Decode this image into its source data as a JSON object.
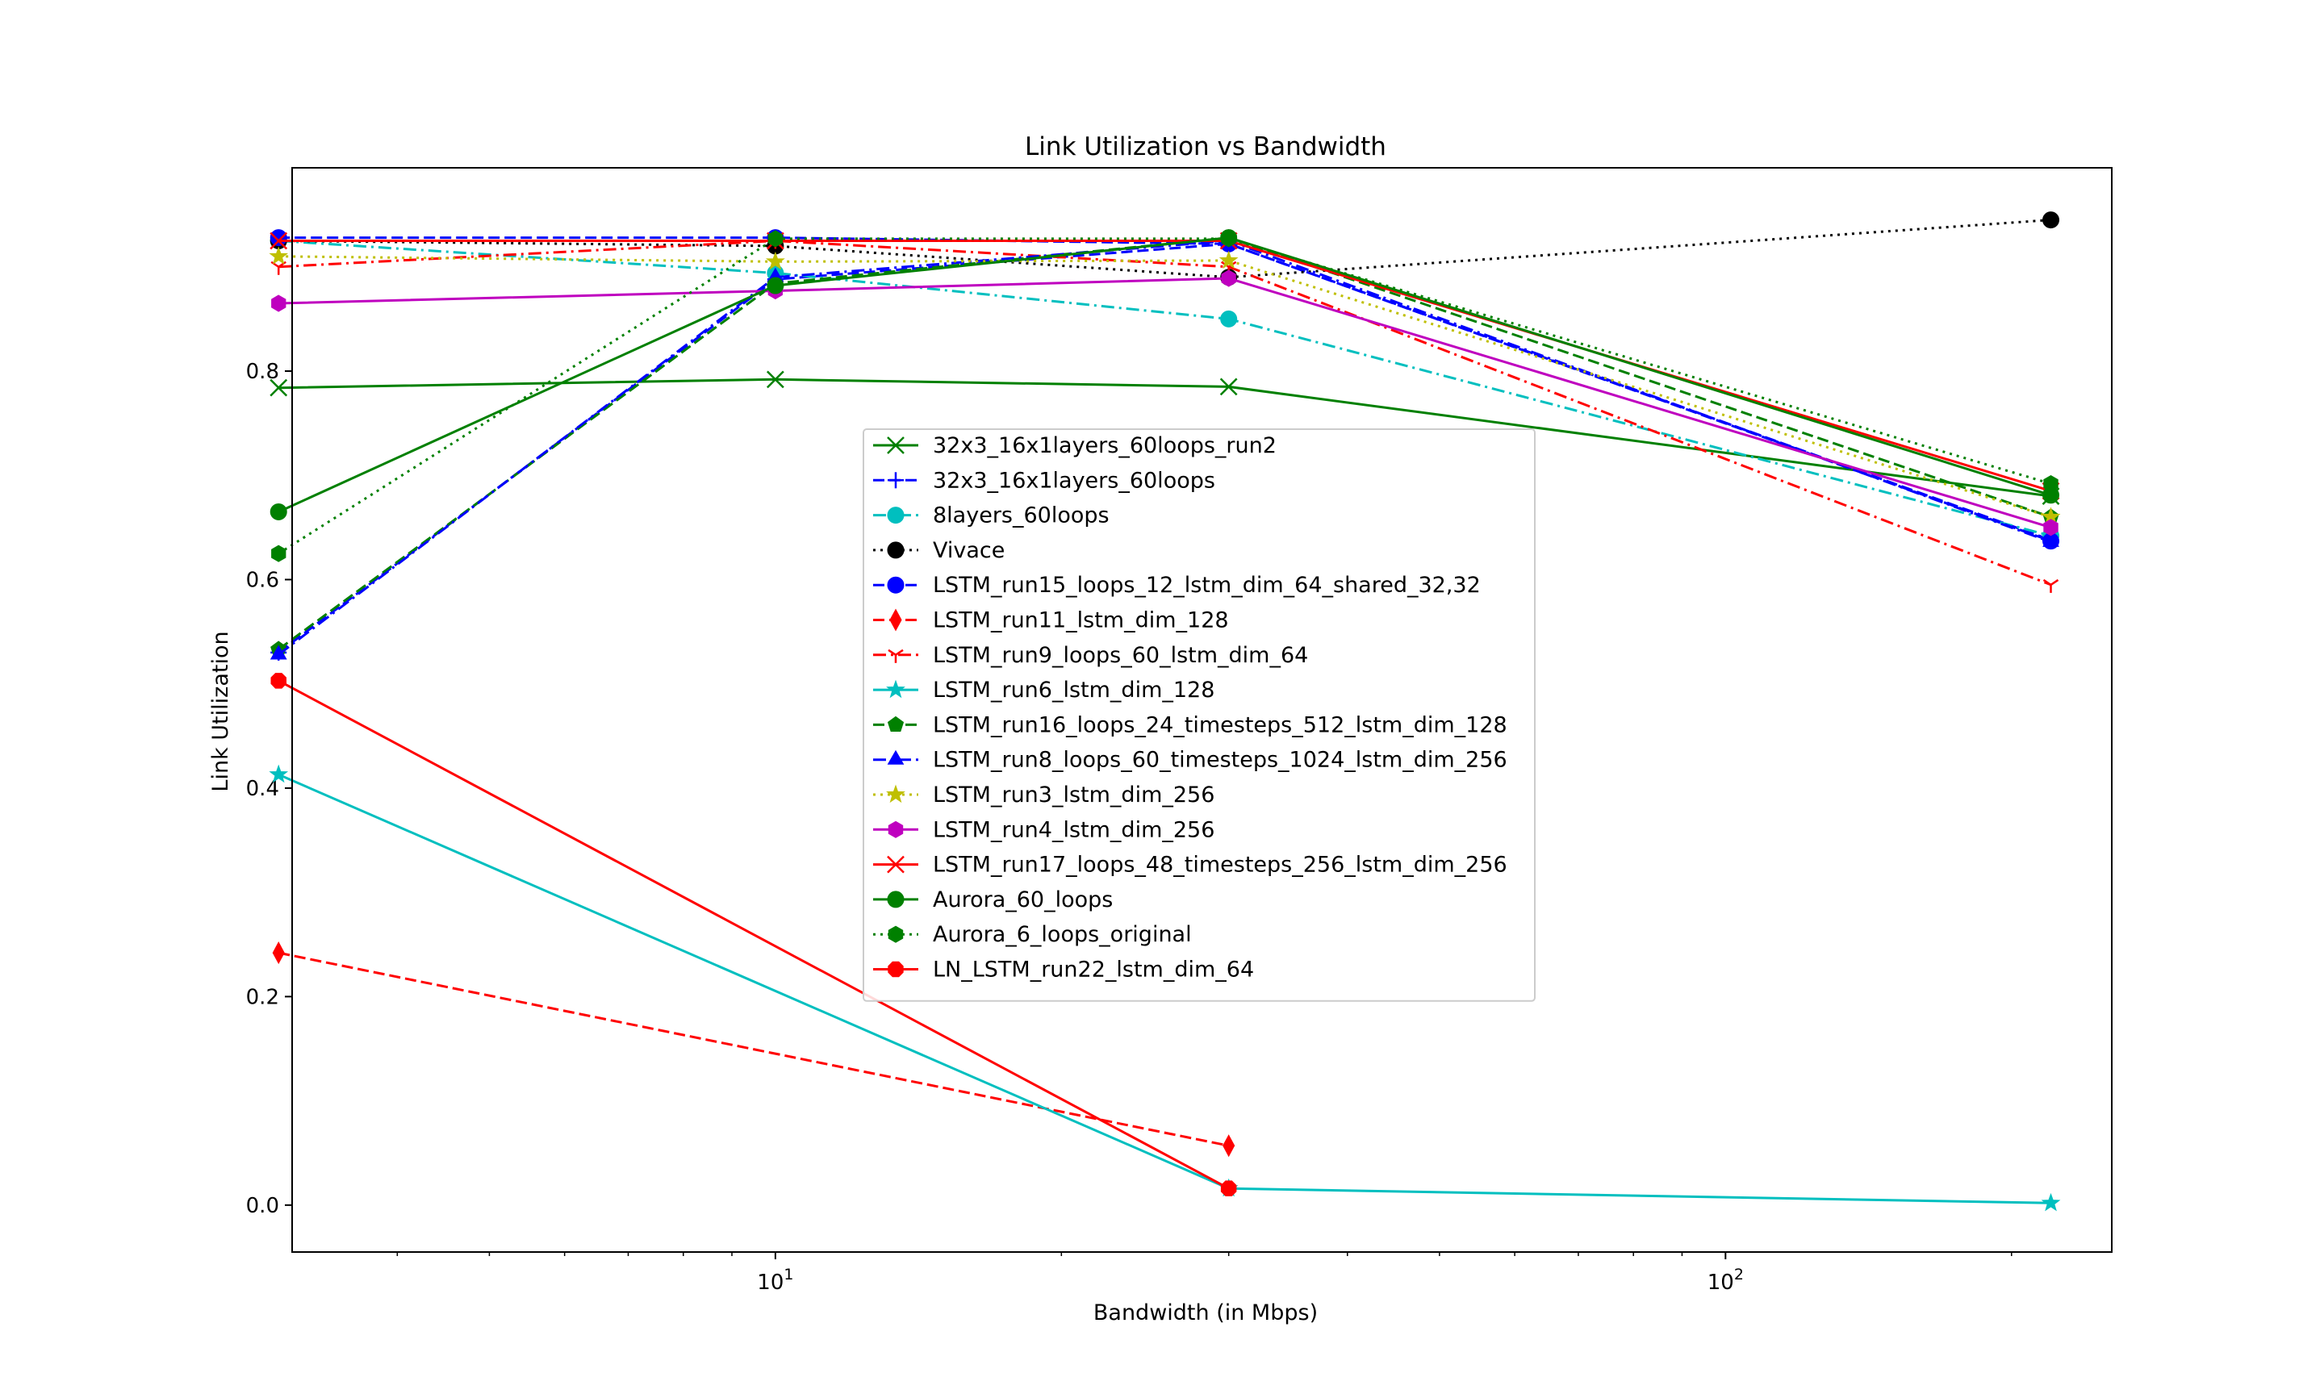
{
  "chart_data": {
    "type": "line",
    "title": "Link Utilization vs Bandwidth",
    "xlabel": "Bandwidth (in Mbps)",
    "ylabel": "Link Utilization",
    "xscale": "log",
    "xlim": [
      3.1,
      255
    ],
    "ylim": [
      -0.045,
      0.995
    ],
    "x": [
      3,
      10,
      30,
      220
    ],
    "xticks": [
      {
        "value": 10,
        "label": "10",
        "exp": "1"
      },
      {
        "value": 100,
        "label": "10",
        "exp": "2"
      }
    ],
    "yticks": [
      {
        "value": 0.0,
        "label": "0.0"
      },
      {
        "value": 0.2,
        "label": "0.2"
      },
      {
        "value": 0.4,
        "label": "0.4"
      },
      {
        "value": 0.6,
        "label": "0.6"
      },
      {
        "value": 0.8,
        "label": "0.8"
      }
    ],
    "grid": false,
    "legend_position": "center",
    "series": [
      {
        "name": "32x3_16x1layers_60loops_run2",
        "color": "#008000",
        "dash": "solid",
        "marker": "x",
        "values": [
          0.784,
          0.792,
          0.785,
          0.68
        ]
      },
      {
        "name": "32x3_16x1layers_60loops",
        "color": "#0000ff",
        "dash": "dashed",
        "marker": "plus",
        "values": [
          0.53,
          0.888,
          0.922,
          0.638
        ]
      },
      {
        "name": "8layers_60loops",
        "color": "#00bfbf",
        "dash": "dashdot",
        "marker": "circle",
        "values": [
          0.925,
          0.894,
          0.85,
          0.642
        ]
      },
      {
        "name": "Vivace",
        "color": "#000000",
        "dash": "dotted",
        "marker": "circle",
        "values": [
          0.925,
          0.92,
          0.89,
          0.945
        ]
      },
      {
        "name": "LSTM_run15_loops_12_lstm_dim_64_shared_32,32",
        "color": "#0000ff",
        "dash": "dashed",
        "marker": "circle",
        "values": [
          0.928,
          0.928,
          0.922,
          0.637
        ]
      },
      {
        "name": "LSTM_run11_lstm_dim_128",
        "color": "#ff0000",
        "dash": "dashed",
        "marker": "thin_diamond",
        "values": [
          0.242,
          null,
          0.057,
          null
        ]
      },
      {
        "name": "LSTM_run9_loops_60_lstm_dim_64",
        "color": "#ff0000",
        "dash": "dashdot",
        "marker": "tri_down",
        "values": [
          0.9,
          0.925,
          0.9,
          0.595
        ]
      },
      {
        "name": "LSTM_run6_lstm_dim_128",
        "color": "#00bfbf",
        "dash": "solid",
        "marker": "star",
        "values": [
          0.413,
          null,
          0.016,
          0.002
        ]
      },
      {
        "name": "LSTM_run16_loops_24_timesteps_512_lstm_dim_128",
        "color": "#008000",
        "dash": "dashed",
        "marker": "pentagon",
        "values": [
          0.533,
          0.884,
          0.928,
          0.66
        ]
      },
      {
        "name": "LSTM_run8_loops_60_timesteps_1024_lstm_dim_256",
        "color": "#0000ff",
        "dash": "dashdot",
        "marker": "triangle",
        "values": [
          0.528,
          0.89,
          0.925,
          0.636
        ]
      },
      {
        "name": "LSTM_run3_lstm_dim_256",
        "color": "#bfbf00",
        "dash": "dotted",
        "marker": "star",
        "values": [
          0.91,
          0.905,
          0.906,
          0.66
        ]
      },
      {
        "name": "LSTM_run4_lstm_dim_256",
        "color": "#bf00bf",
        "dash": "solid",
        "marker": "hexagon",
        "values": [
          0.865,
          0.877,
          0.889,
          0.65
        ]
      },
      {
        "name": "LSTM_run17_loops_48_timesteps_256_lstm_dim_256",
        "color": "#ff0000",
        "dash": "solid",
        "marker": "x",
        "values": [
          0.925,
          0.925,
          0.925,
          0.685
        ]
      },
      {
        "name": "Aurora_60_loops",
        "color": "#008000",
        "dash": "solid",
        "marker": "circle",
        "values": [
          0.665,
          0.882,
          0.928,
          0.681
        ]
      },
      {
        "name": "Aurora_6_loops_original",
        "color": "#008000",
        "dash": "dotted",
        "marker": "hexagon",
        "values": [
          0.625,
          0.927,
          0.927,
          0.692
        ]
      },
      {
        "name": "LN_LSTM_run22_lstm_dim_64",
        "color": "#ff0000",
        "dash": "solid",
        "marker": "octagon",
        "values": [
          0.503,
          null,
          0.016,
          null
        ]
      }
    ]
  }
}
